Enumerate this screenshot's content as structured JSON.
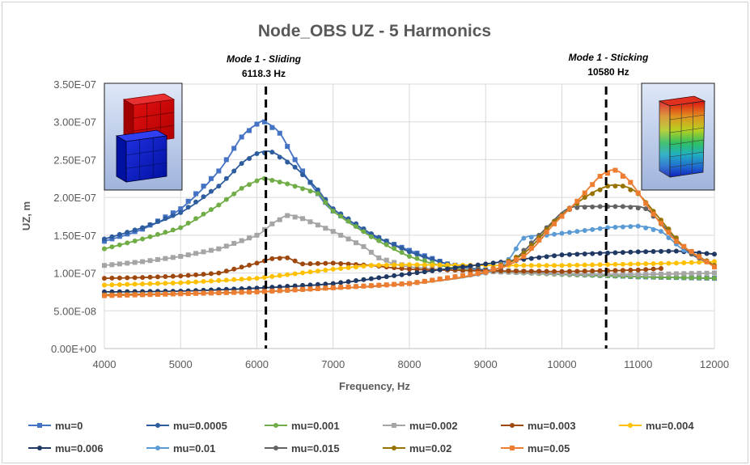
{
  "chart_data": {
    "type": "line",
    "title": "Node_OBS UZ - 5 Harmonics",
    "xlabel": "Frequency, Hz",
    "ylabel": "UZ, m",
    "xlim": [
      4000,
      12000
    ],
    "ylim": [
      0,
      3.5e-07
    ],
    "x_ticks": [
      "4000",
      "5000",
      "6000",
      "7000",
      "8000",
      "9000",
      "10000",
      "11000",
      "12000"
    ],
    "y_ticks": [
      "0.00E+00",
      "5.00E-08",
      "1.00E-07",
      "1.50E-07",
      "2.00E-07",
      "2.50E-07",
      "3.00E-07",
      "3.50E-07"
    ],
    "grid": true,
    "legend_position": "bottom",
    "annotations": [
      {
        "label": "Mode 1 - Sliding",
        "value_text": "6118.3 Hz",
        "x": 6118.3
      },
      {
        "label": "Mode 1 - Sticking",
        "value_text": "10580 Hz",
        "x": 10580
      }
    ],
    "series": [
      {
        "name": "mu=0",
        "color": "#4472C4",
        "marker": "square",
        "points": [
          [
            4000,
            1.42e-07
          ],
          [
            4500,
            1.58e-07
          ],
          [
            5000,
            1.85e-07
          ],
          [
            5500,
            2.35e-07
          ],
          [
            5800,
            2.8e-07
          ],
          [
            6000,
            2.97e-07
          ],
          [
            6100,
            3e-07
          ],
          [
            6300,
            2.85e-07
          ],
          [
            6500,
            2.5e-07
          ],
          [
            6800,
            2.05e-07
          ],
          [
            7000,
            1.82e-07
          ],
          [
            7500,
            1.5e-07
          ],
          [
            8000,
            1.3e-07
          ],
          [
            8500,
            1.12e-07
          ],
          [
            9000,
            1.04e-07
          ],
          [
            10000,
            9.9e-08
          ],
          [
            11000,
            9.5e-08
          ],
          [
            11500,
            9.4e-08
          ],
          [
            12000,
            9.3e-08
          ]
        ]
      },
      {
        "name": "mu=0.0005",
        "color": "#2E5D9F",
        "marker": "circle",
        "points": [
          [
            4000,
            1.45e-07
          ],
          [
            4500,
            1.6e-07
          ],
          [
            5000,
            1.8e-07
          ],
          [
            5500,
            2.15e-07
          ],
          [
            5800,
            2.45e-07
          ],
          [
            6000,
            2.58e-07
          ],
          [
            6200,
            2.6e-07
          ],
          [
            6500,
            2.4e-07
          ],
          [
            6800,
            2.1e-07
          ],
          [
            7000,
            1.85e-07
          ],
          [
            7500,
            1.52e-07
          ],
          [
            8000,
            1.28e-07
          ],
          [
            8500,
            1.12e-07
          ],
          [
            9000,
            1.04e-07
          ],
          [
            10000,
            9.8e-08
          ],
          [
            11000,
            9.5e-08
          ],
          [
            11500,
            9.4e-08
          ],
          [
            12000,
            9.3e-08
          ]
        ]
      },
      {
        "name": "mu=0.001",
        "color": "#70AD47",
        "marker": "circle",
        "points": [
          [
            4000,
            1.32e-07
          ],
          [
            4500,
            1.45e-07
          ],
          [
            5000,
            1.6e-07
          ],
          [
            5500,
            1.9e-07
          ],
          [
            5800,
            2.12e-07
          ],
          [
            6000,
            2.22e-07
          ],
          [
            6100,
            2.25e-07
          ],
          [
            6400,
            2.18e-07
          ],
          [
            6800,
            2.05e-07
          ],
          [
            7000,
            1.82e-07
          ],
          [
            7500,
            1.48e-07
          ],
          [
            8000,
            1.22e-07
          ],
          [
            8500,
            1.08e-07
          ],
          [
            9000,
            1.02e-07
          ],
          [
            10000,
            9.8e-08
          ],
          [
            11000,
            9.5e-08
          ],
          [
            12000,
            9.3e-08
          ]
        ]
      },
      {
        "name": "mu=0.002",
        "color": "#A5A5A5",
        "marker": "square",
        "points": [
          [
            4000,
            1.1e-07
          ],
          [
            4500,
            1.15e-07
          ],
          [
            5000,
            1.22e-07
          ],
          [
            5500,
            1.32e-07
          ],
          [
            6000,
            1.5e-07
          ],
          [
            6200,
            1.65e-07
          ],
          [
            6400,
            1.76e-07
          ],
          [
            6600,
            1.72e-07
          ],
          [
            7000,
            1.55e-07
          ],
          [
            7400,
            1.35e-07
          ],
          [
            7600,
            1.2e-07
          ],
          [
            8000,
            1.08e-07
          ],
          [
            9000,
            1.02e-07
          ],
          [
            10000,
            9.9e-08
          ],
          [
            11000,
            9.8e-08
          ],
          [
            12000,
            1e-07
          ]
        ]
      },
      {
        "name": "mu=0.003",
        "color": "#9E480E",
        "marker": "circle",
        "points": [
          [
            4000,
            9.3e-08
          ],
          [
            4500,
            9.4e-08
          ],
          [
            5000,
            9.6e-08
          ],
          [
            5500,
            1e-07
          ],
          [
            6000,
            1.13e-07
          ],
          [
            6200,
            1.19e-07
          ],
          [
            6400,
            1.2e-07
          ],
          [
            6600,
            1.12e-07
          ],
          [
            7000,
            1.13e-07
          ],
          [
            7500,
            1.1e-07
          ],
          [
            8000,
            1.05e-07
          ],
          [
            9000,
            1.03e-07
          ],
          [
            10000,
            1.02e-07
          ],
          [
            11000,
            1.04e-07
          ],
          [
            11300,
            1.06e-07
          ]
        ]
      },
      {
        "name": "mu=0.004",
        "color": "#FFC000",
        "marker": "circle",
        "points": [
          [
            4000,
            8.4e-08
          ],
          [
            5000,
            8.7e-08
          ],
          [
            6000,
            9.3e-08
          ],
          [
            7000,
            1.05e-07
          ],
          [
            7500,
            1.1e-07
          ],
          [
            8000,
            1.11e-07
          ],
          [
            9000,
            1.1e-07
          ],
          [
            10000,
            1.1e-07
          ],
          [
            11000,
            1.12e-07
          ],
          [
            11500,
            1.13e-07
          ],
          [
            12000,
            1.15e-07
          ]
        ]
      },
      {
        "name": "mu=0.006",
        "color": "#203864",
        "marker": "circle",
        "points": [
          [
            4000,
            7.5e-08
          ],
          [
            5000,
            7.6e-08
          ],
          [
            6000,
            8e-08
          ],
          [
            7000,
            8.6e-08
          ],
          [
            8000,
            9.9e-08
          ],
          [
            9000,
            1.12e-07
          ],
          [
            10000,
            1.24e-07
          ],
          [
            11000,
            1.28e-07
          ],
          [
            11500,
            1.29e-07
          ],
          [
            12000,
            1.25e-07
          ]
        ]
      },
      {
        "name": "mu=0.01",
        "color": "#5B9BD5",
        "marker": "circle",
        "points": [
          [
            4000,
            7.1e-08
          ],
          [
            6000,
            7.5e-08
          ],
          [
            8000,
            8.6e-08
          ],
          [
            9000,
            1e-07
          ],
          [
            9300,
            1.18e-07
          ],
          [
            9500,
            1.46e-07
          ],
          [
            9800,
            1.5e-07
          ],
          [
            10200,
            1.55e-07
          ],
          [
            10600,
            1.6e-07
          ],
          [
            11000,
            1.62e-07
          ],
          [
            11300,
            1.55e-07
          ],
          [
            11600,
            1.3e-07
          ],
          [
            12000,
            1.1e-07
          ]
        ]
      },
      {
        "name": "mu=0.015",
        "color": "#636363",
        "marker": "circle",
        "points": [
          [
            4000,
            7.1e-08
          ],
          [
            6000,
            7.5e-08
          ],
          [
            8000,
            8.6e-08
          ],
          [
            9000,
            1.01e-07
          ],
          [
            9400,
            1.2e-07
          ],
          [
            9800,
            1.6e-07
          ],
          [
            10100,
            1.86e-07
          ],
          [
            10500,
            1.88e-07
          ],
          [
            10800,
            1.88e-07
          ],
          [
            11100,
            1.85e-07
          ],
          [
            11400,
            1.55e-07
          ],
          [
            11700,
            1.25e-07
          ],
          [
            12000,
            1.1e-07
          ]
        ]
      },
      {
        "name": "mu=0.02",
        "color": "#997300",
        "marker": "circle",
        "points": [
          [
            4000,
            7.1e-08
          ],
          [
            6000,
            7.5e-08
          ],
          [
            8000,
            8.6e-08
          ],
          [
            9000,
            1.01e-07
          ],
          [
            9500,
            1.26e-07
          ],
          [
            9900,
            1.68e-07
          ],
          [
            10300,
            2e-07
          ],
          [
            10600,
            2.15e-07
          ],
          [
            10800,
            2.15e-07
          ],
          [
            11000,
            2.05e-07
          ],
          [
            11300,
            1.7e-07
          ],
          [
            11600,
            1.35e-07
          ],
          [
            12000,
            1.1e-07
          ]
        ]
      },
      {
        "name": "mu=0.05",
        "color": "#ED7D31",
        "marker": "square",
        "points": [
          [
            4000,
            7e-08
          ],
          [
            6000,
            7.5e-08
          ],
          [
            8000,
            8.6e-08
          ],
          [
            9000,
            1.01e-07
          ],
          [
            9500,
            1.22e-07
          ],
          [
            9900,
            1.65e-07
          ],
          [
            10200,
            1.95e-07
          ],
          [
            10500,
            2.28e-07
          ],
          [
            10700,
            2.36e-07
          ],
          [
            10900,
            2.2e-07
          ],
          [
            11200,
            1.78e-07
          ],
          [
            11500,
            1.42e-07
          ],
          [
            12000,
            1.08e-07
          ]
        ]
      }
    ]
  }
}
